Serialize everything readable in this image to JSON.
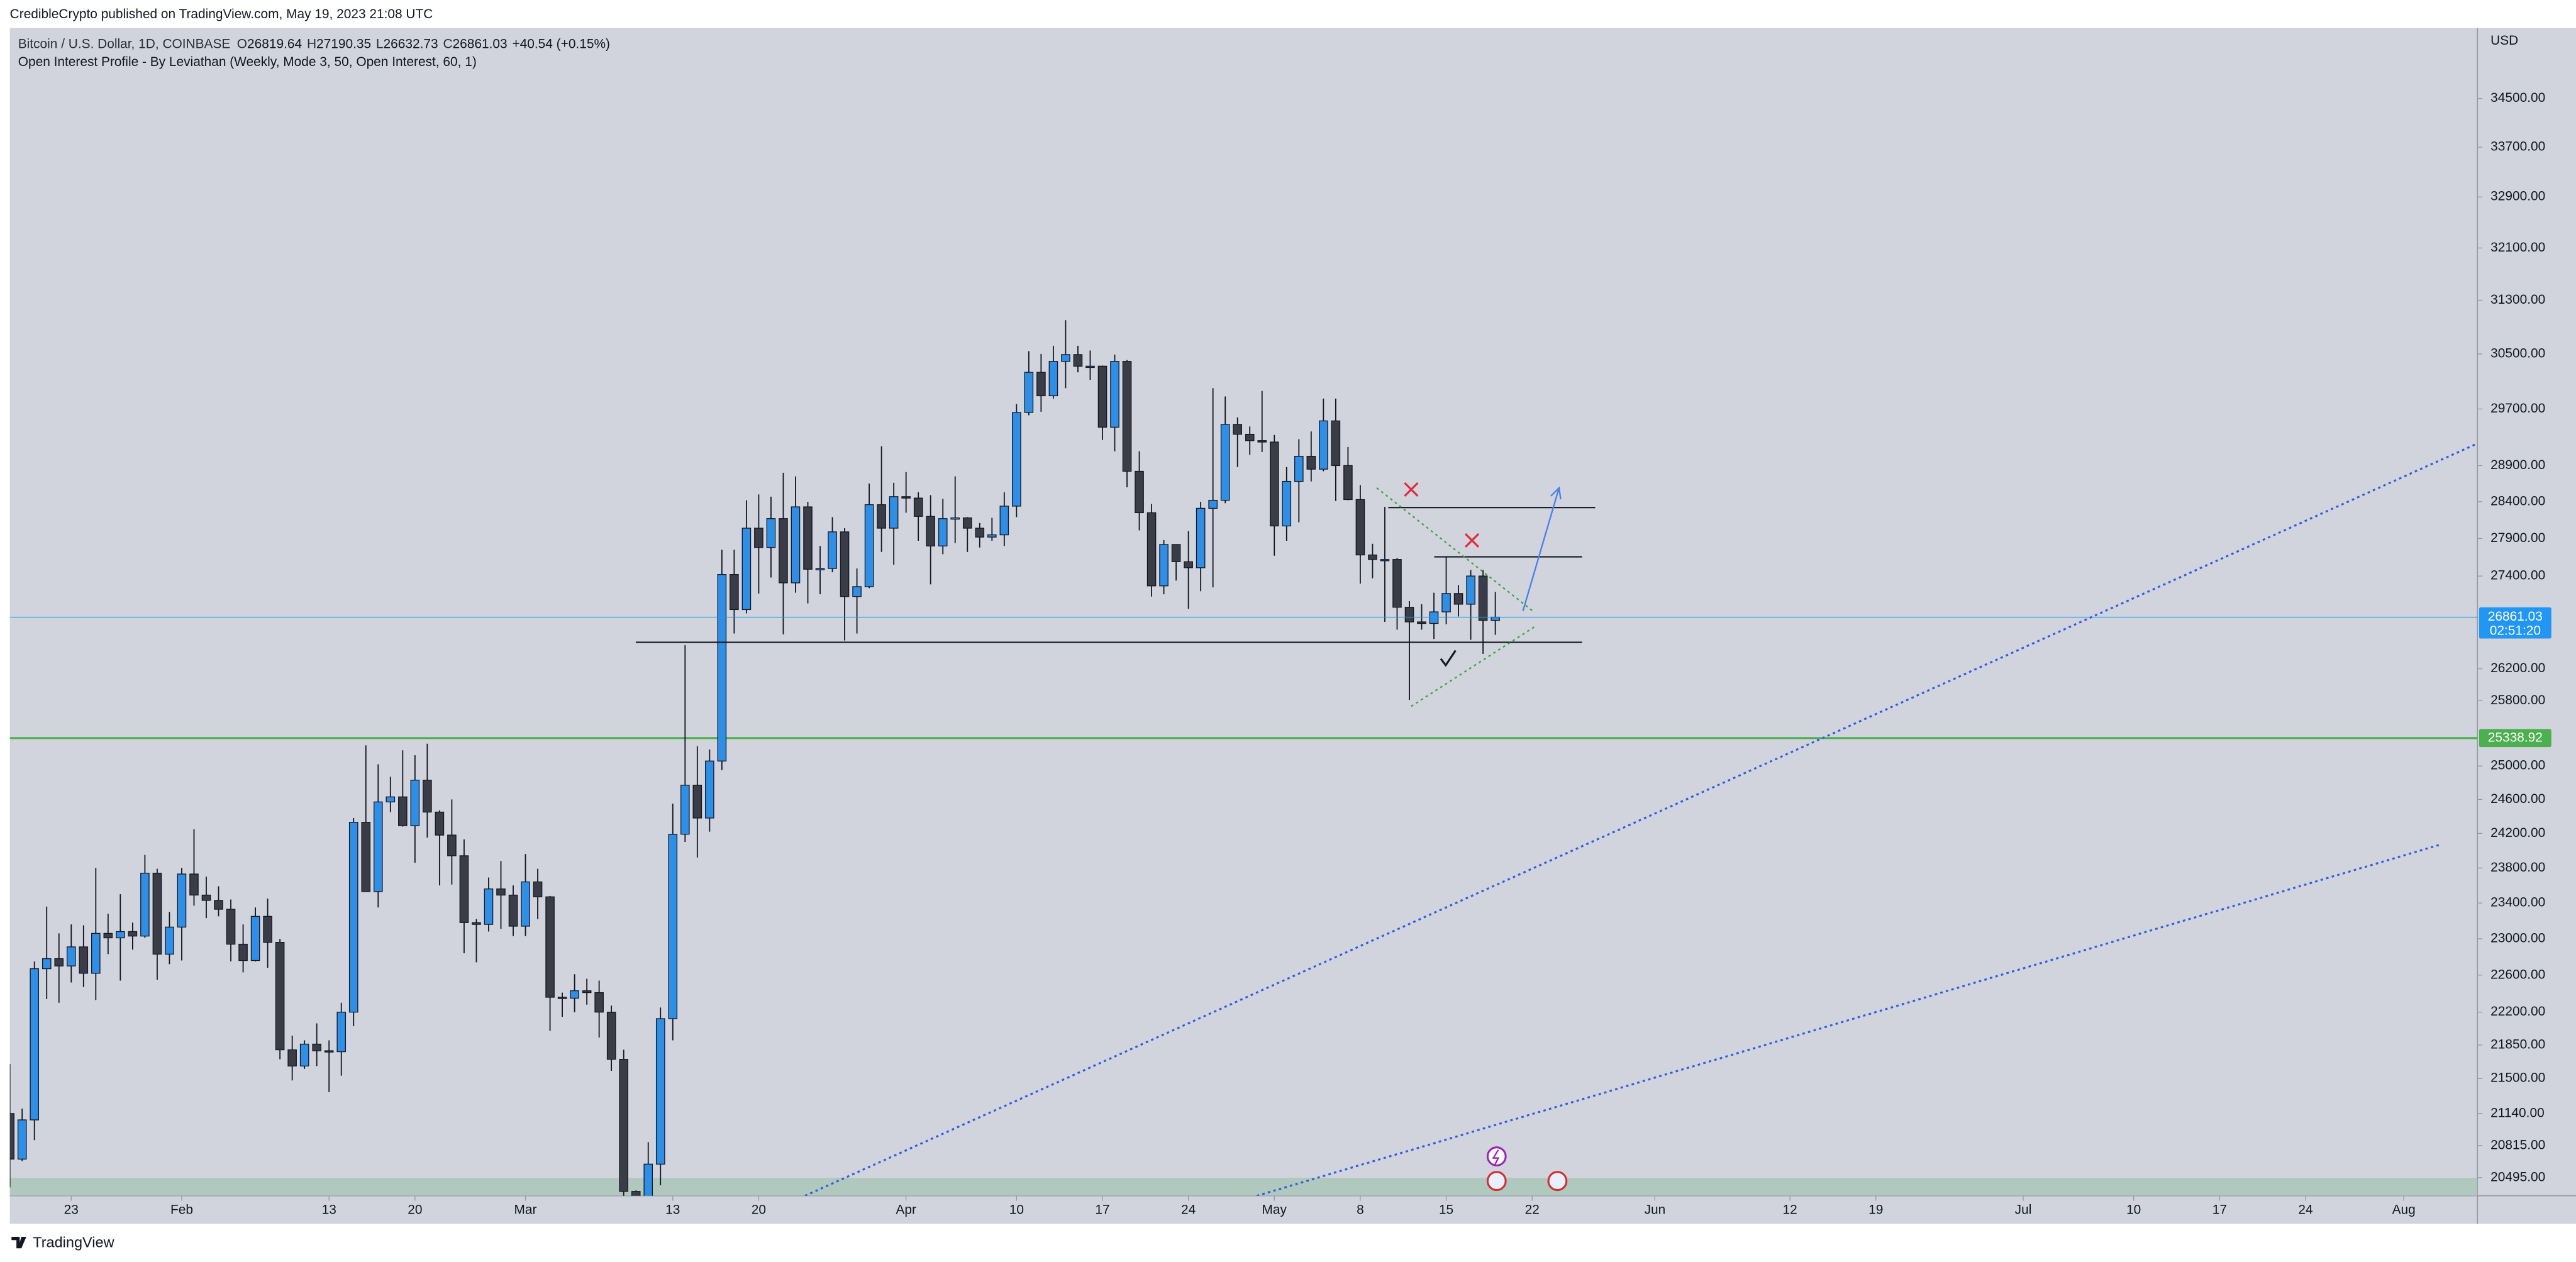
{
  "header": {
    "publisher": "CredibleCrypto published on TradingView.com, May 19, 2023 21:08 UTC"
  },
  "footer": {
    "brand": "TradingView"
  },
  "chart_data": {
    "type": "candlestick",
    "title": "Bitcoin / U.S. Dollar, 1D, COINBASE",
    "readout_labels": [
      "O",
      "H",
      "L",
      "C"
    ],
    "readout_values": [
      26819.64,
      27190.35,
      26632.73,
      26861.03
    ],
    "change": "+40.54 (+0.15%)",
    "subtitle": "Open Interest Profile - By Leviathan (Weekly, Mode 3, 50, Open Interest, 60, 1)",
    "y_unit": "USD",
    "countdown": "02:51:20",
    "log_scale": true,
    "up_color": "#2f8fe6",
    "down_color": "#3a3d47",
    "last_price_color": "#2196f3",
    "x": [
      "2023-01-18",
      "2023-01-19",
      "2023-01-20",
      "2023-01-21",
      "2023-01-22",
      "2023-01-23",
      "2023-01-24",
      "2023-01-25",
      "2023-01-26",
      "2023-01-27",
      "2023-01-28",
      "2023-01-29",
      "2023-01-30",
      "2023-01-31",
      "2023-02-01",
      "2023-02-02",
      "2023-02-03",
      "2023-02-04",
      "2023-02-05",
      "2023-02-06",
      "2023-02-07",
      "2023-02-08",
      "2023-02-09",
      "2023-02-10",
      "2023-02-11",
      "2023-02-12",
      "2023-02-13",
      "2023-02-14",
      "2023-02-15",
      "2023-02-16",
      "2023-02-17",
      "2023-02-18",
      "2023-02-19",
      "2023-02-20",
      "2023-02-21",
      "2023-02-22",
      "2023-02-23",
      "2023-02-24",
      "2023-02-25",
      "2023-02-26",
      "2023-02-27",
      "2023-02-28",
      "2023-03-01",
      "2023-03-02",
      "2023-03-03",
      "2023-03-04",
      "2023-03-05",
      "2023-03-06",
      "2023-03-07",
      "2023-03-08",
      "2023-03-09",
      "2023-03-10",
      "2023-03-11",
      "2023-03-12",
      "2023-03-13",
      "2023-03-14",
      "2023-03-15",
      "2023-03-16",
      "2023-03-17",
      "2023-03-18",
      "2023-03-19",
      "2023-03-20",
      "2023-03-21",
      "2023-03-22",
      "2023-03-23",
      "2023-03-24",
      "2023-03-25",
      "2023-03-26",
      "2023-03-27",
      "2023-03-28",
      "2023-03-29",
      "2023-03-30",
      "2023-03-31",
      "2023-04-01",
      "2023-04-02",
      "2023-04-03",
      "2023-04-04",
      "2023-04-05",
      "2023-04-06",
      "2023-04-07",
      "2023-04-08",
      "2023-04-09",
      "2023-04-10",
      "2023-04-11",
      "2023-04-12",
      "2023-04-13",
      "2023-04-14",
      "2023-04-15",
      "2023-04-16",
      "2023-04-17",
      "2023-04-18",
      "2023-04-19",
      "2023-04-20",
      "2023-04-21",
      "2023-04-22",
      "2023-04-23",
      "2023-04-24",
      "2023-04-25",
      "2023-04-26",
      "2023-04-27",
      "2023-04-28",
      "2023-04-29",
      "2023-04-30",
      "2023-05-01",
      "2023-05-02",
      "2023-05-03",
      "2023-05-04",
      "2023-05-05",
      "2023-05-06",
      "2023-05-07",
      "2023-05-08",
      "2023-05-09",
      "2023-05-10",
      "2023-05-11",
      "2023-05-12",
      "2023-05-13",
      "2023-05-14",
      "2023-05-15",
      "2023-05-16",
      "2023-05-17",
      "2023-05-18",
      "2023-05-19"
    ],
    "open": [
      21140,
      20680,
      21075,
      22670,
      22780,
      22700,
      22910,
      22620,
      23060,
      23010,
      23080,
      23030,
      23740,
      22830,
      23130,
      23730,
      23490,
      23430,
      23330,
      22940,
      22760,
      23250,
      22960,
      21800,
      21630,
      21860,
      21790,
      21780,
      22200,
      24330,
      23530,
      24570,
      24630,
      24290,
      24830,
      24450,
      24180,
      23940,
      23180,
      23160,
      23560,
      23490,
      23140,
      23640,
      23470,
      22360,
      22350,
      22430,
      22410,
      22200,
      21700,
      20360,
      20190,
      20630,
      22130,
      24190,
      24770,
      24380,
      25060,
      27420,
      26960,
      28040,
      27780,
      28170,
      27310,
      28330,
      27490,
      27500,
      27990,
      27130,
      27260,
      28360,
      28040,
      28470,
      28450,
      28200,
      27800,
      28170,
      28180,
      28040,
      27920,
      27950,
      28340,
      29650,
      30230,
      29890,
      30390,
      30490,
      30320,
      30320,
      29440,
      30390,
      28820,
      28250,
      27270,
      27820,
      27590,
      27510,
      28310,
      28420,
      29480,
      29340,
      29250,
      29230,
      28070,
      28680,
      29030,
      28850,
      29530,
      28900,
      28430,
      27680,
      27620,
      27620,
      26990,
      26800,
      26780,
      26930,
      27170,
      27030,
      27400,
      26819.64
    ],
    "high": [
      21650,
      21190,
      22750,
      23360,
      23060,
      23160,
      23150,
      23800,
      23280,
      23500,
      23180,
      23950,
      23790,
      23300,
      23800,
      24250,
      23700,
      23590,
      23440,
      23160,
      23350,
      23450,
      23000,
      21950,
      21900,
      22080,
      21900,
      22300,
      24380,
      25250,
      25020,
      24870,
      25190,
      25130,
      25270,
      24470,
      24600,
      24130,
      23220,
      23690,
      23880,
      23600,
      23960,
      23790,
      23480,
      22410,
      22610,
      22560,
      22540,
      22270,
      21800,
      20370,
      20850,
      22250,
      24550,
      26500,
      25240,
      25200,
      27750,
      27750,
      28420,
      28500,
      28470,
      28800,
      28750,
      28400,
      27800,
      28190,
      28040,
      27500,
      28650,
      29170,
      28660,
      28810,
      28530,
      28490,
      28440,
      28750,
      28190,
      28110,
      28180,
      28530,
      29770,
      30540,
      30500,
      30620,
      31000,
      30620,
      30550,
      30330,
      30490,
      30410,
      29100,
      28370,
      27880,
      27820,
      28000,
      28400,
      30000,
      29880,
      29580,
      29450,
      29960,
      29330,
      28880,
      29270,
      29380,
      29850,
      29850,
      29160,
      28630,
      27830,
      28330,
      27640,
      27070,
      27030,
      27180,
      27660,
      27280,
      27480,
      27480,
      27190.35
    ],
    "low": [
      20400,
      20660,
      20870,
      22340,
      22300,
      22520,
      22470,
      22330,
      22830,
      22540,
      22880,
      23010,
      22550,
      22720,
      22760,
      23370,
      23230,
      23250,
      22750,
      22630,
      22750,
      22680,
      21700,
      21480,
      21600,
      21630,
      21360,
      21530,
      22050,
      23540,
      23350,
      24450,
      24280,
      23860,
      24150,
      23600,
      23610,
      22840,
      22740,
      23080,
      23110,
      23030,
      23030,
      23220,
      22000,
      22150,
      22200,
      22280,
      21930,
      21580,
      20050,
      19550,
      19900,
      20420,
      21900,
      24100,
      23920,
      24220,
      24950,
      26650,
      26910,
      27170,
      27380,
      26640,
      27180,
      27040,
      27160,
      27450,
      26560,
      26650,
      27240,
      27720,
      27550,
      28250,
      27870,
      27290,
      27690,
      27840,
      27720,
      27780,
      27870,
      27800,
      28190,
      29610,
      29660,
      29850,
      30000,
      30230,
      30120,
      29260,
      29100,
      28600,
      28010,
      27130,
      27160,
      27340,
      26970,
      27200,
      27250,
      28380,
      28880,
      29050,
      29090,
      27670,
      27870,
      28120,
      28680,
      28820,
      28410,
      28420,
      27300,
      27370,
      26800,
      26700,
      25810,
      26700,
      26580,
      26770,
      26870,
      26570,
      26390,
      26632.73
    ],
    "close": [
      20680,
      21075,
      22670,
      22780,
      22700,
      22910,
      22620,
      23060,
      23010,
      23080,
      23030,
      23740,
      22830,
      23130,
      23730,
      23490,
      23430,
      23330,
      22940,
      22760,
      23250,
      22960,
      21800,
      21630,
      21860,
      21790,
      21780,
      22200,
      24330,
      23530,
      24570,
      24630,
      24290,
      24830,
      24450,
      24180,
      23940,
      23180,
      23160,
      23560,
      23490,
      23140,
      23640,
      23470,
      22360,
      22350,
      22430,
      22410,
      22200,
      21700,
      20360,
      20190,
      20630,
      22130,
      24190,
      24770,
      24380,
      25060,
      27420,
      26960,
      28040,
      27780,
      28170,
      27310,
      28330,
      27490,
      27500,
      27990,
      27130,
      27260,
      28360,
      28040,
      28470,
      28450,
      28200,
      27800,
      28170,
      28180,
      28040,
      27920,
      27950,
      28340,
      29650,
      30230,
      29890,
      30390,
      30490,
      30320,
      30320,
      29440,
      30390,
      28820,
      28250,
      27270,
      27820,
      27590,
      27510,
      28310,
      28420,
      29480,
      29340,
      29250,
      29230,
      28070,
      28680,
      29030,
      28850,
      29530,
      28900,
      28430,
      27680,
      27620,
      27620,
      26990,
      26800,
      26780,
      26930,
      27170,
      27030,
      27400,
      26819.64,
      26861.03
    ],
    "hlines": [
      {
        "value": 25338.92,
        "color": "#4caf50"
      }
    ],
    "xlim": [
      "2023-01-18",
      "2023-08-07"
    ],
    "xticks": [
      {
        "value": "2023-01-23",
        "label": "23"
      },
      {
        "value": "2023-02-01",
        "label": "Feb"
      },
      {
        "value": "2023-02-13",
        "label": "13"
      },
      {
        "value": "2023-02-20",
        "label": "20"
      },
      {
        "value": "2023-03-01",
        "label": "Mar"
      },
      {
        "value": "2023-03-13",
        "label": "13"
      },
      {
        "value": "2023-03-20",
        "label": "20"
      },
      {
        "value": "2023-04-01",
        "label": "Apr"
      },
      {
        "value": "2023-04-10",
        "label": "10"
      },
      {
        "value": "2023-04-17",
        "label": "17"
      },
      {
        "value": "2023-04-24",
        "label": "24"
      },
      {
        "value": "2023-05-01",
        "label": "May"
      },
      {
        "value": "2023-05-08",
        "label": "8"
      },
      {
        "value": "2023-05-15",
        "label": "15"
      },
      {
        "value": "2023-05-22",
        "label": "22"
      },
      {
        "value": "2023-06-01",
        "label": "Jun"
      },
      {
        "value": "2023-06-12",
        "label": "12"
      },
      {
        "value": "2023-06-19",
        "label": "19"
      },
      {
        "value": "2023-07-01",
        "label": "Jul"
      },
      {
        "value": "2023-07-10",
        "label": "10"
      },
      {
        "value": "2023-07-17",
        "label": "17"
      },
      {
        "value": "2023-07-24",
        "label": "24"
      },
      {
        "value": "2023-08-01",
        "label": "Aug"
      }
    ],
    "ylim": [
      20317,
      35696
    ],
    "yticks": [
      {
        "value": 34500,
        "label": "34500.00"
      },
      {
        "value": 33700,
        "label": "33700.00"
      },
      {
        "value": 32900,
        "label": "32900.00"
      },
      {
        "value": 32100,
        "label": "32100.00"
      },
      {
        "value": 31300,
        "label": "31300.00"
      },
      {
        "value": 30500,
        "label": "30500.00"
      },
      {
        "value": 29700,
        "label": "29700.00"
      },
      {
        "value": 28900,
        "label": "28900.00"
      },
      {
        "value": 28400,
        "label": "28400.00"
      },
      {
        "value": 27900,
        "label": "27900.00"
      },
      {
        "value": 27400,
        "label": "27400.00"
      },
      {
        "value": 26200,
        "label": "26200.00"
      },
      {
        "value": 25800,
        "label": "25800.00"
      },
      {
        "value": 25000,
        "label": "25000.00"
      },
      {
        "value": 24600,
        "label": "24600.00"
      },
      {
        "value": 24200,
        "label": "24200.00"
      },
      {
        "value": 23800,
        "label": "23800.00"
      },
      {
        "value": 23400,
        "label": "23400.00"
      },
      {
        "value": 23000,
        "label": "23000.00"
      },
      {
        "value": 22600,
        "label": "22600.00"
      },
      {
        "value": 22200,
        "label": "22200.00"
      },
      {
        "value": 21850,
        "label": "21850.00"
      },
      {
        "value": 21500,
        "label": "21500.00"
      },
      {
        "value": 21140,
        "label": "21140.00"
      },
      {
        "value": 20815,
        "label": "20815.00"
      },
      {
        "value": 20495,
        "label": "20495.00"
      }
    ]
  }
}
